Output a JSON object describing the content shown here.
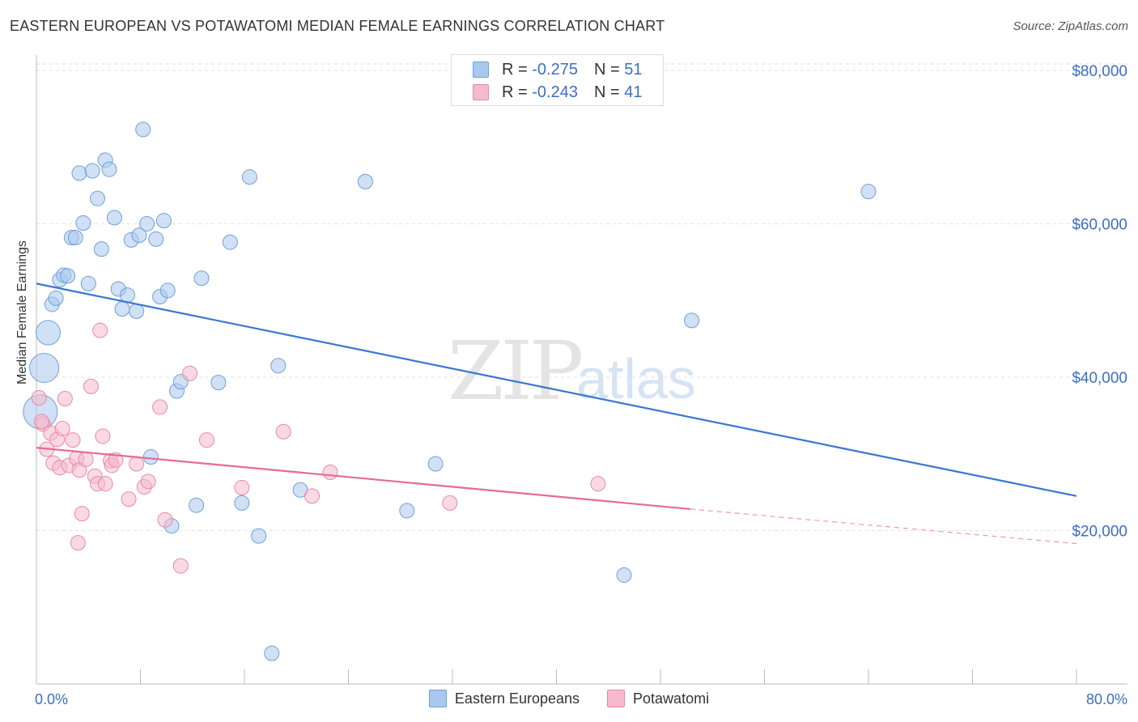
{
  "title": "EASTERN EUROPEAN VS POTAWATOMI MEDIAN FEMALE EARNINGS CORRELATION CHART",
  "source": "Source: ZipAtlas.com",
  "watermark": {
    "zip": "ZIP",
    "atlas": "atlas"
  },
  "legend": {
    "r_label": "R =",
    "n_label": "N =",
    "rows": [
      {
        "r": "-0.275",
        "n": "51",
        "color": "#a9c8ee"
      },
      {
        "r": "-0.243",
        "n": "41",
        "color": "#f6b9cd"
      }
    ]
  },
  "bottom_legend": [
    "Eastern Europeans",
    "Potawatomi"
  ],
  "chart_data": {
    "type": "scatter",
    "xlabel": "",
    "ylabel": "Median Female Earnings",
    "xlim": [
      0,
      80
    ],
    "ylim": [
      0,
      82000
    ],
    "x_tick_labels": [
      "0.0%",
      "80.0%"
    ],
    "y_ticks": [
      20000,
      40000,
      60000,
      80000
    ],
    "y_tick_labels": [
      "$20,000",
      "$40,000",
      "$60,000",
      "$80,000"
    ],
    "grid": true,
    "series": [
      {
        "name": "Eastern Europeans",
        "color": "#a9c8ee",
        "stroke": "#6f9fd9",
        "trend": {
          "x0": 0,
          "y0": 52200,
          "x1": 80,
          "y1": 24500,
          "color": "#3a76d0"
        },
        "points": [
          [
            0.3,
            35500
          ],
          [
            0.6,
            41200
          ],
          [
            0.9,
            45800
          ],
          [
            1.2,
            49500
          ],
          [
            1.5,
            50300
          ],
          [
            1.8,
            52700
          ],
          [
            2.1,
            53300
          ],
          [
            2.4,
            53200
          ],
          [
            2.7,
            58200
          ],
          [
            3.0,
            58200
          ],
          [
            3.3,
            66600
          ],
          [
            3.6,
            60100
          ],
          [
            4.0,
            52200
          ],
          [
            4.3,
            66900
          ],
          [
            4.7,
            63300
          ],
          [
            5.0,
            56700
          ],
          [
            5.3,
            68300
          ],
          [
            5.6,
            67100
          ],
          [
            6.0,
            60800
          ],
          [
            6.3,
            51500
          ],
          [
            6.6,
            48900
          ],
          [
            7.0,
            50700
          ],
          [
            7.3,
            57900
          ],
          [
            7.7,
            48600
          ],
          [
            7.9,
            58500
          ],
          [
            8.2,
            72300
          ],
          [
            8.5,
            60000
          ],
          [
            8.8,
            29600
          ],
          [
            9.2,
            58000
          ],
          [
            9.5,
            50500
          ],
          [
            9.8,
            60400
          ],
          [
            10.1,
            51300
          ],
          [
            10.4,
            20600
          ],
          [
            10.8,
            38200
          ],
          [
            11.1,
            39400
          ],
          [
            12.3,
            23300
          ],
          [
            12.7,
            52900
          ],
          [
            14.0,
            39300
          ],
          [
            14.9,
            57600
          ],
          [
            15.8,
            23600
          ],
          [
            16.4,
            66100
          ],
          [
            17.1,
            19300
          ],
          [
            18.1,
            4000
          ],
          [
            18.6,
            41500
          ],
          [
            20.3,
            25300
          ],
          [
            25.3,
            65500
          ],
          [
            28.5,
            22600
          ],
          [
            30.7,
            28700
          ],
          [
            45.2,
            14200
          ],
          [
            50.4,
            47400
          ],
          [
            64.0,
            64200
          ]
        ]
      },
      {
        "name": "Potawatomi",
        "color": "#f6b9cd",
        "stroke": "#e888a8",
        "trend": {
          "x0": 0,
          "y0": 30800,
          "x1": 50.3,
          "y1": 22800,
          "color": "#e56a98"
        },
        "trend_dashed": {
          "x0": 50.3,
          "y0": 22800,
          "x1": 80,
          "y1": 18300
        },
        "points": [
          [
            0.2,
            37300
          ],
          [
            0.5,
            33900
          ],
          [
            0.8,
            30600
          ],
          [
            1.1,
            32700
          ],
          [
            1.3,
            28800
          ],
          [
            1.6,
            31900
          ],
          [
            1.8,
            28200
          ],
          [
            2.0,
            33300
          ],
          [
            2.2,
            37200
          ],
          [
            2.5,
            28500
          ],
          [
            2.8,
            31800
          ],
          [
            3.1,
            29400
          ],
          [
            3.3,
            27900
          ],
          [
            3.2,
            18400
          ],
          [
            3.5,
            22200
          ],
          [
            3.8,
            29300
          ],
          [
            4.2,
            38800
          ],
          [
            4.5,
            27100
          ],
          [
            4.7,
            26100
          ],
          [
            4.9,
            46100
          ],
          [
            5.1,
            32300
          ],
          [
            5.3,
            26100
          ],
          [
            5.7,
            29100
          ],
          [
            5.8,
            28500
          ],
          [
            6.1,
            29200
          ],
          [
            7.1,
            24100
          ],
          [
            7.7,
            28700
          ],
          [
            8.3,
            25700
          ],
          [
            8.6,
            26400
          ],
          [
            9.5,
            36100
          ],
          [
            9.9,
            21400
          ],
          [
            11.1,
            15400
          ],
          [
            11.8,
            40500
          ],
          [
            13.1,
            31800
          ],
          [
            15.8,
            25600
          ],
          [
            19.0,
            32900
          ],
          [
            21.2,
            24500
          ],
          [
            22.6,
            27600
          ],
          [
            31.8,
            23600
          ],
          [
            43.2,
            26100
          ],
          [
            0.4,
            34200
          ]
        ]
      }
    ]
  }
}
